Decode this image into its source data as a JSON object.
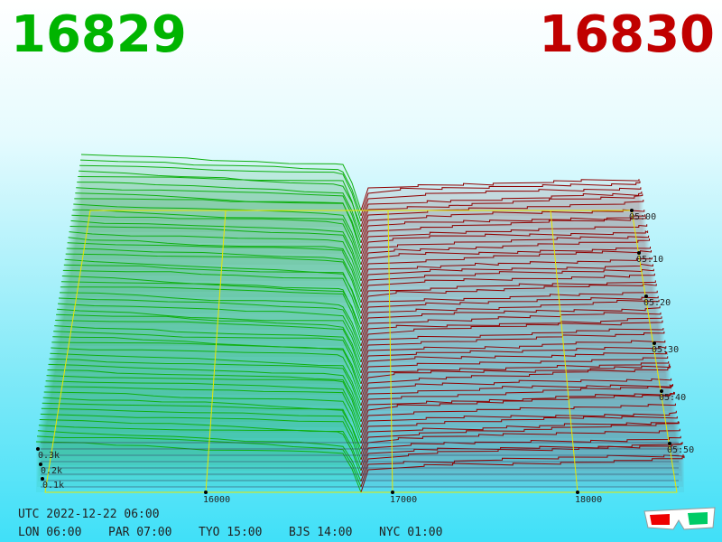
{
  "header": {
    "bid": "16829",
    "ask": "16830"
  },
  "price_axis": [
    "16000",
    "17000",
    "18000"
  ],
  "time_axis": [
    "05:00",
    "05:10",
    "05:20",
    "05:30",
    "05:40",
    "05:50"
  ],
  "depth_axis": [
    "0.3k",
    "0.2k",
    "0.1k"
  ],
  "footer": {
    "utc": "UTC 2022-12-22 06:00",
    "clocks": [
      "LON 06:00",
      "PAR 07:00",
      "TYO 15:00",
      "BJS 14:00",
      "NYC 01:00"
    ]
  }
}
